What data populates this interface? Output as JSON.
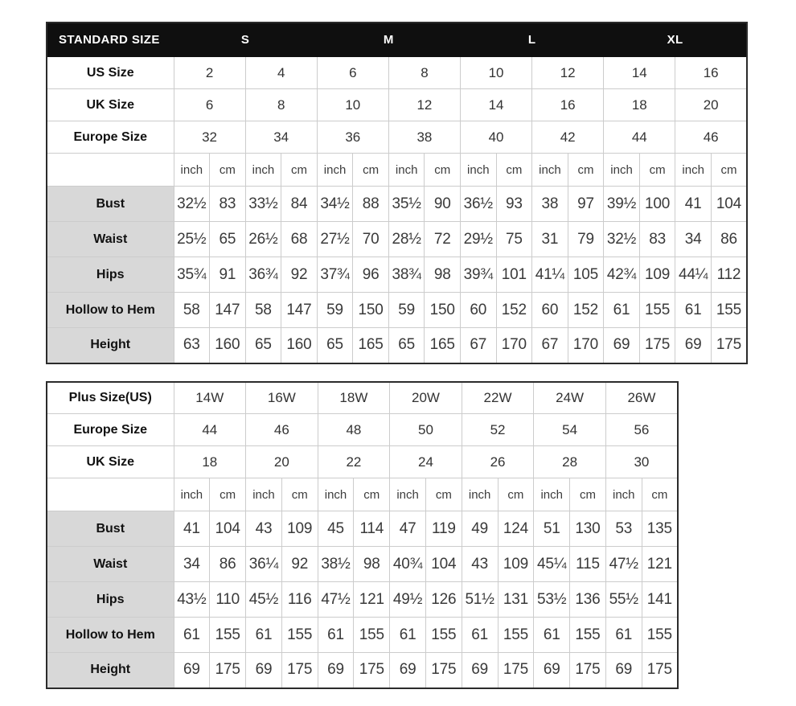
{
  "colors": {
    "page_bg": "#ffffff",
    "header_bg": "#0f0f0f",
    "header_text": "#ffffff",
    "label_bg": "#d8d8d8",
    "grid_border": "#cccccc",
    "outer_border": "#2b2b2b",
    "text": "#333333"
  },
  "standard_table": {
    "header": {
      "label": "STANDARD SIZE",
      "groups": [
        "S",
        "M",
        "L",
        "XL"
      ]
    },
    "size_rows": [
      {
        "label": "US Size",
        "values": [
          "2",
          "4",
          "6",
          "8",
          "10",
          "12",
          "14",
          "16"
        ]
      },
      {
        "label": "UK Size",
        "values": [
          "6",
          "8",
          "10",
          "12",
          "14",
          "16",
          "18",
          "20"
        ]
      },
      {
        "label": "Europe Size",
        "values": [
          "32",
          "34",
          "36",
          "38",
          "40",
          "42",
          "44",
          "46"
        ]
      }
    ],
    "unit_row": [
      "inch",
      "cm",
      "inch",
      "cm",
      "inch",
      "cm",
      "inch",
      "cm",
      "inch",
      "cm",
      "inch",
      "cm",
      "inch",
      "cm",
      "inch",
      "cm"
    ],
    "measure_rows": [
      {
        "label": "Bust",
        "values": [
          "32½",
          "83",
          "33½",
          "84",
          "34½",
          "88",
          "35½",
          "90",
          "36½",
          "93",
          "38",
          "97",
          "39½",
          "100",
          "41",
          "104"
        ]
      },
      {
        "label": "Waist",
        "values": [
          "25½",
          "65",
          "26½",
          "68",
          "27½",
          "70",
          "28½",
          "72",
          "29½",
          "75",
          "31",
          "79",
          "32½",
          "83",
          "34",
          "86"
        ]
      },
      {
        "label": "Hips",
        "values": [
          "35¾",
          "91",
          "36¾",
          "92",
          "37¾",
          "96",
          "38¾",
          "98",
          "39¾",
          "101",
          "41¼",
          "105",
          "42¾",
          "109",
          "44¼",
          "112"
        ]
      },
      {
        "label": "Hollow to Hem",
        "values": [
          "58",
          "147",
          "58",
          "147",
          "59",
          "150",
          "59",
          "150",
          "60",
          "152",
          "60",
          "152",
          "61",
          "155",
          "61",
          "155"
        ]
      },
      {
        "label": "Height",
        "values": [
          "63",
          "160",
          "65",
          "160",
          "65",
          "165",
          "65",
          "165",
          "67",
          "170",
          "67",
          "170",
          "69",
          "175",
          "69",
          "175"
        ]
      }
    ]
  },
  "plus_table": {
    "size_rows": [
      {
        "label": "Plus Size(US)",
        "values": [
          "14W",
          "16W",
          "18W",
          "20W",
          "22W",
          "24W",
          "26W"
        ]
      },
      {
        "label": "Europe Size",
        "values": [
          "44",
          "46",
          "48",
          "50",
          "52",
          "54",
          "56"
        ]
      },
      {
        "label": "UK Size",
        "values": [
          "18",
          "20",
          "22",
          "24",
          "26",
          "28",
          "30"
        ]
      }
    ],
    "unit_row": [
      "inch",
      "cm",
      "inch",
      "cm",
      "inch",
      "cm",
      "inch",
      "cm",
      "inch",
      "cm",
      "inch",
      "cm",
      "inch",
      "cm"
    ],
    "measure_rows": [
      {
        "label": "Bust",
        "values": [
          "41",
          "104",
          "43",
          "109",
          "45",
          "114",
          "47",
          "119",
          "49",
          "124",
          "51",
          "130",
          "53",
          "135"
        ]
      },
      {
        "label": "Waist",
        "values": [
          "34",
          "86",
          "36¼",
          "92",
          "38½",
          "98",
          "40¾",
          "104",
          "43",
          "109",
          "45¼",
          "115",
          "47½",
          "121"
        ]
      },
      {
        "label": "Hips",
        "values": [
          "43½",
          "110",
          "45½",
          "116",
          "47½",
          "121",
          "49½",
          "126",
          "51½",
          "131",
          "53½",
          "136",
          "55½",
          "141"
        ]
      },
      {
        "label": "Hollow to Hem",
        "values": [
          "61",
          "155",
          "61",
          "155",
          "61",
          "155",
          "61",
          "155",
          "61",
          "155",
          "61",
          "155",
          "61",
          "155"
        ]
      },
      {
        "label": "Height",
        "values": [
          "69",
          "175",
          "69",
          "175",
          "69",
          "175",
          "69",
          "175",
          "69",
          "175",
          "69",
          "175",
          "69",
          "175"
        ]
      }
    ]
  }
}
